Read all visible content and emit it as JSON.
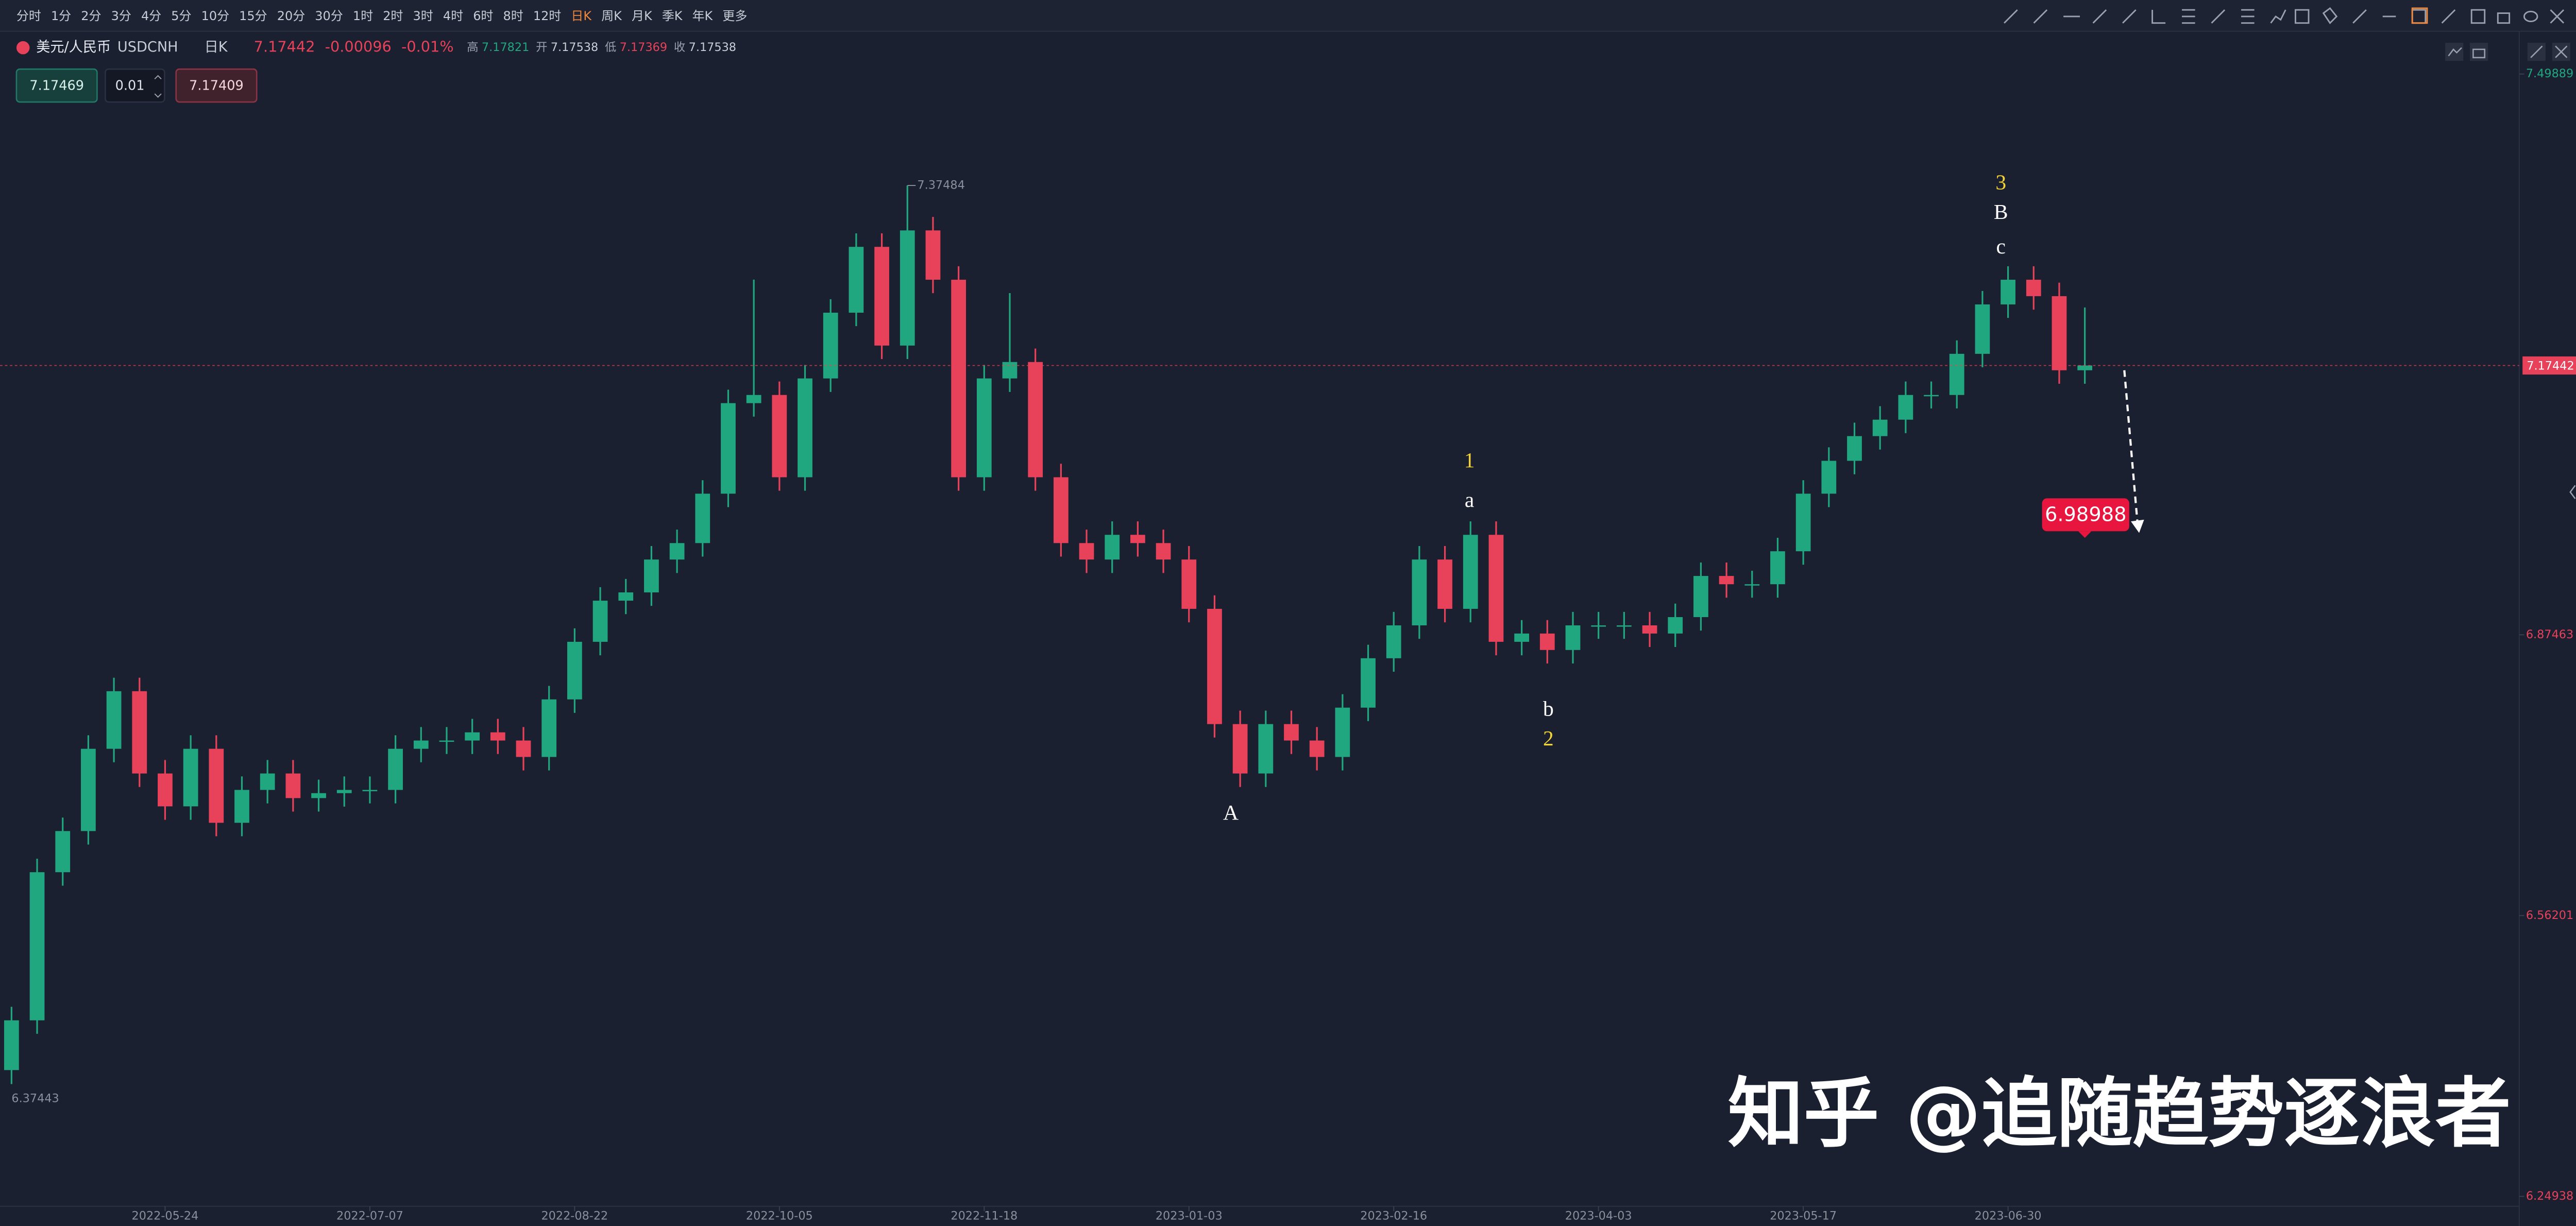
{
  "toolbar": {
    "intervals": [
      "分时",
      "1分",
      "2分",
      "3分",
      "4分",
      "5分",
      "10分",
      "15分",
      "20分",
      "30分",
      "1时",
      "2时",
      "3时",
      "4时",
      "6时",
      "8时",
      "12时",
      "日K",
      "周K",
      "月K",
      "季K",
      "年K",
      "更多"
    ]
  },
  "header": {
    "symbol": "美元/人民币",
    "code": "USDCNH",
    "period": "日K",
    "last": "7.17442",
    "change": "-0.00096",
    "change_pct": "-0.01%",
    "high_label": "高",
    "high": "7.17821",
    "open_label": "开",
    "open": "7.17538",
    "low_label": "低",
    "low": "7.17369",
    "close_label": "收",
    "close": "7.17538"
  },
  "order": {
    "sell": "7.17469",
    "qty": "0.01",
    "buy": "7.17409"
  },
  "watermark": "知乎 @追随趋势逐浪者",
  "chart_data": {
    "type": "candlestick",
    "categories": [
      null,
      null,
      null,
      null,
      null,
      null,
      "2022-05-24",
      null,
      null,
      null,
      null,
      null,
      null,
      null,
      "2022-07-07",
      null,
      null,
      null,
      null,
      null,
      null,
      null,
      "2022-08-22",
      null,
      null,
      null,
      null,
      null,
      null,
      null,
      "2022-10-05",
      null,
      null,
      null,
      null,
      null,
      null,
      null,
      "2022-11-18",
      null,
      null,
      null,
      null,
      null,
      null,
      null,
      "2023-01-03",
      null,
      null,
      null,
      null,
      null,
      null,
      null,
      "2023-02-16",
      null,
      null,
      null,
      null,
      null,
      null,
      null,
      "2023-04-03",
      null,
      null,
      null,
      null,
      null,
      null,
      null,
      "2023-05-17",
      null,
      null,
      null,
      null,
      null,
      null,
      null,
      "2023-06-30",
      null,
      null,
      null
    ],
    "open": [
      6.39,
      6.4454,
      6.6103,
      6.6561,
      6.7477,
      6.8118,
      6.7202,
      6.6836,
      6.7477,
      6.6653,
      6.7019,
      6.7202,
      6.6928,
      6.6983,
      6.7019,
      6.7019,
      6.7477,
      6.7569,
      6.7569,
      6.766,
      6.7569,
      6.7386,
      6.8027,
      6.8668,
      6.9126,
      6.9218,
      6.9584,
      6.9767,
      7.0317,
      7.1325,
      7.1416,
      7.05,
      7.16,
      7.2332,
      7.3065,
      7.1966,
      7.3248,
      7.2699,
      7.05,
      7.16,
      7.1783,
      7.05,
      6.9767,
      6.9584,
      6.9859,
      6.9767,
      6.9584,
      6.9035,
      6.7752,
      6.7202,
      6.7752,
      6.7569,
      6.7386,
      6.7935,
      6.8485,
      6.8851,
      6.9584,
      6.9035,
      6.9859,
      6.8668,
      6.876,
      6.8577,
      6.8851,
      6.8851,
      6.8851,
      6.876,
      6.8943,
      6.9401,
      6.9309,
      6.9309,
      6.9676,
      7.0317,
      7.0683,
      7.0958,
      7.1141,
      7.1416,
      7.1416,
      7.1874,
      7.2424,
      7.2699,
      7.2516,
      7.1691
    ],
    "high": [
      6.4604,
      6.6253,
      6.6711,
      6.7627,
      6.8268,
      6.8268,
      6.7352,
      6.7627,
      6.7627,
      6.7169,
      6.7352,
      6.7352,
      6.7133,
      6.7169,
      6.7169,
      6.7627,
      6.7719,
      6.7719,
      6.781,
      6.781,
      6.7719,
      6.8177,
      6.8818,
      6.9276,
      6.9368,
      6.9734,
      6.9917,
      7.0467,
      7.1475,
      7.27,
      7.1566,
      7.175,
      7.2482,
      7.3215,
      7.3215,
      7.37484,
      7.3398,
      7.2849,
      7.175,
      7.255,
      7.1933,
      7.065,
      6.9917,
      7.0009,
      7.0009,
      6.9917,
      6.9734,
      6.9185,
      6.7902,
      6.7902,
      6.7902,
      6.7719,
      6.8085,
      6.8635,
      6.9001,
      6.9734,
      6.9734,
      7.0009,
      7.0009,
      6.891,
      6.891,
      6.9001,
      6.9001,
      6.9001,
      6.9001,
      6.9093,
      6.9551,
      6.9551,
      6.9459,
      6.9826,
      7.0467,
      7.0833,
      7.1108,
      7.1291,
      7.1566,
      7.1566,
      7.2024,
      7.2574,
      7.2849,
      7.2849,
      7.2666,
      7.239
    ],
    "low": [
      6.37443,
      6.4304,
      6.5953,
      6.6411,
      6.7327,
      6.7052,
      6.6686,
      6.6686,
      6.6503,
      6.6503,
      6.6869,
      6.6778,
      6.6778,
      6.6833,
      6.6869,
      6.6869,
      6.7327,
      6.7419,
      6.7419,
      6.7419,
      6.7236,
      6.7236,
      6.7877,
      6.8518,
      6.8976,
      6.9068,
      6.9434,
      6.9617,
      7.0167,
      7.1175,
      7.035,
      7.035,
      7.145,
      7.2182,
      7.1816,
      7.1816,
      7.2549,
      7.035,
      7.035,
      7.145,
      7.035,
      6.9617,
      6.9434,
      6.9434,
      6.9617,
      6.9434,
      6.8885,
      6.7602,
      6.7052,
      6.7052,
      6.7419,
      6.7236,
      6.7236,
      6.7785,
      6.8335,
      6.8701,
      6.8885,
      6.8885,
      6.8518,
      6.8518,
      6.8427,
      6.8427,
      6.8701,
      6.8701,
      6.861,
      6.861,
      6.8793,
      6.9159,
      6.9159,
      6.9159,
      6.9526,
      7.0167,
      7.0533,
      7.0808,
      7.0991,
      7.1266,
      7.1266,
      7.1724,
      7.2274,
      7.2366,
      7.1541,
      7.1541
    ],
    "close": [
      6.4454,
      6.6103,
      6.6561,
      6.7477,
      6.8118,
      6.7202,
      6.6836,
      6.7477,
      6.6653,
      6.7019,
      6.7202,
      6.6928,
      6.6983,
      6.7019,
      6.7019,
      6.7477,
      6.7569,
      6.7569,
      6.766,
      6.7569,
      6.7386,
      6.8027,
      6.8668,
      6.9126,
      6.9218,
      6.9584,
      6.9767,
      7.0317,
      7.1325,
      7.1416,
      7.05,
      7.16,
      7.2332,
      7.3065,
      7.1966,
      7.3248,
      7.2699,
      7.05,
      7.16,
      7.1783,
      7.05,
      6.9767,
      6.9584,
      6.9859,
      6.9767,
      6.9584,
      6.9035,
      6.7752,
      6.7202,
      6.7752,
      6.7569,
      6.7386,
      6.7935,
      6.8485,
      6.8851,
      6.9584,
      6.9035,
      6.9859,
      6.8668,
      6.876,
      6.8577,
      6.8851,
      6.8851,
      6.8851,
      6.876,
      6.8943,
      6.9401,
      6.9309,
      6.9309,
      6.9676,
      7.0317,
      7.0683,
      7.0958,
      7.1141,
      7.1416,
      7.1416,
      7.1874,
      7.2424,
      7.2699,
      7.2516,
      7.1691,
      7.17442
    ],
    "up_color": "#20a77f",
    "down_color": "#e8415a",
    "ylim": [
      6.2384,
      7.5117
    ],
    "yticks": [
      6.24938,
      6.56201,
      6.87463,
      7.49889
    ],
    "last_price": 7.17442,
    "target": 6.98988,
    "annotations": [
      "3",
      "B",
      "c",
      "1",
      "a",
      "b",
      "2",
      "A"
    ]
  }
}
